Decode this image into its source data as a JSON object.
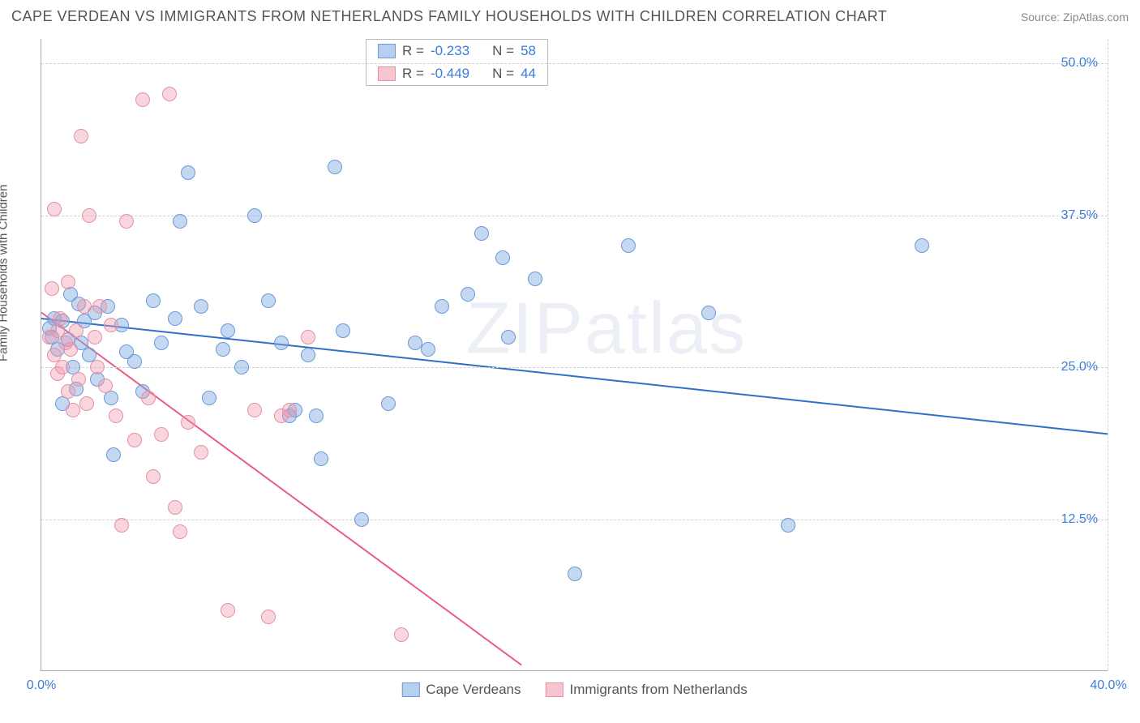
{
  "title": "CAPE VERDEAN VS IMMIGRANTS FROM NETHERLANDS FAMILY HOUSEHOLDS WITH CHILDREN CORRELATION CHART",
  "source": "Source: ZipAtlas.com",
  "watermark_text": "ZIPatlas",
  "chart": {
    "type": "scatter",
    "yaxis_title": "Family Households with Children",
    "yaxis_title_fontsize": 15,
    "background_color": "#ffffff",
    "grid_color": "#d0d0d0",
    "axis_color": "#aaaaaa",
    "tick_label_color": "#3b7dd8",
    "tick_fontsize": 16,
    "xlim": [
      0,
      40
    ],
    "ylim": [
      0,
      52
    ],
    "yticks": [
      12.5,
      25.0,
      37.5,
      50.0
    ],
    "ytick_labels": [
      "12.5%",
      "25.0%",
      "37.5%",
      "50.0%"
    ],
    "xticks": [
      0,
      40
    ],
    "xtick_labels": [
      "0.0%",
      "40.0%"
    ],
    "marker_size": 18,
    "series": [
      {
        "name": "Cape Verdeans",
        "color_fill": "rgba(126,169,226,0.45)",
        "color_border": "#6a9ad8",
        "color_hex": "#7ea9e2",
        "R": -0.233,
        "N": 58,
        "trend": {
          "x1": 0,
          "y1": 29.0,
          "x2": 40,
          "y2": 19.5,
          "stroke": "#2f6fc7",
          "width": 2
        },
        "points": [
          [
            0.3,
            28.2
          ],
          [
            0.4,
            27.5
          ],
          [
            0.5,
            29.0
          ],
          [
            0.6,
            26.5
          ],
          [
            0.8,
            28.8
          ],
          [
            0.8,
            22.0
          ],
          [
            1.0,
            27.3
          ],
          [
            1.1,
            31.0
          ],
          [
            1.2,
            25.0
          ],
          [
            1.3,
            23.2
          ],
          [
            1.4,
            30.2
          ],
          [
            1.5,
            27.0
          ],
          [
            1.6,
            28.8
          ],
          [
            1.8,
            26.0
          ],
          [
            2.0,
            29.5
          ],
          [
            2.1,
            24.0
          ],
          [
            2.5,
            30.0
          ],
          [
            2.6,
            22.5
          ],
          [
            2.7,
            17.8
          ],
          [
            3.0,
            28.5
          ],
          [
            3.2,
            26.3
          ],
          [
            3.5,
            25.5
          ],
          [
            3.8,
            23.0
          ],
          [
            4.2,
            30.5
          ],
          [
            4.5,
            27.0
          ],
          [
            5.0,
            29.0
          ],
          [
            5.2,
            37.0
          ],
          [
            5.5,
            41.0
          ],
          [
            6.0,
            30.0
          ],
          [
            6.3,
            22.5
          ],
          [
            6.8,
            26.5
          ],
          [
            7.0,
            28.0
          ],
          [
            7.5,
            25.0
          ],
          [
            8.0,
            37.5
          ],
          [
            8.5,
            30.5
          ],
          [
            9.0,
            27.0
          ],
          [
            9.3,
            21.0
          ],
          [
            9.5,
            21.5
          ],
          [
            10.0,
            26.0
          ],
          [
            10.3,
            21.0
          ],
          [
            10.5,
            17.5
          ],
          [
            11.0,
            41.5
          ],
          [
            11.3,
            28.0
          ],
          [
            12.0,
            12.5
          ],
          [
            13.0,
            22.0
          ],
          [
            14.0,
            27.0
          ],
          [
            14.5,
            26.5
          ],
          [
            15.0,
            30.0
          ],
          [
            16.0,
            31.0
          ],
          [
            16.5,
            36.0
          ],
          [
            17.3,
            34.0
          ],
          [
            17.5,
            27.5
          ],
          [
            18.5,
            32.3
          ],
          [
            20.0,
            8.0
          ],
          [
            22.0,
            35.0
          ],
          [
            25.0,
            29.5
          ],
          [
            28.0,
            12.0
          ],
          [
            33.0,
            35.0
          ]
        ]
      },
      {
        "name": "Immigrants from Netherlands",
        "color_fill": "rgba(240,150,170,0.40)",
        "color_border": "#e591a5",
        "color_hex": "#f096aa",
        "R": -0.449,
        "N": 44,
        "trend": {
          "x1": 0,
          "y1": 29.5,
          "x2": 18,
          "y2": 0.5,
          "stroke": "#e85d87",
          "width": 2
        },
        "points": [
          [
            0.3,
            27.5
          ],
          [
            0.4,
            31.5
          ],
          [
            0.5,
            26.0
          ],
          [
            0.5,
            38.0
          ],
          [
            0.6,
            28.0
          ],
          [
            0.6,
            24.5
          ],
          [
            0.7,
            29.0
          ],
          [
            0.8,
            25.0
          ],
          [
            0.9,
            27.0
          ],
          [
            1.0,
            23.0
          ],
          [
            1.0,
            32.0
          ],
          [
            1.1,
            26.5
          ],
          [
            1.2,
            21.5
          ],
          [
            1.3,
            28.0
          ],
          [
            1.4,
            24.0
          ],
          [
            1.5,
            44.0
          ],
          [
            1.6,
            30.0
          ],
          [
            1.7,
            22.0
          ],
          [
            1.8,
            37.5
          ],
          [
            2.0,
            27.5
          ],
          [
            2.1,
            25.0
          ],
          [
            2.2,
            30.0
          ],
          [
            2.4,
            23.5
          ],
          [
            2.6,
            28.5
          ],
          [
            2.8,
            21.0
          ],
          [
            3.0,
            12.0
          ],
          [
            3.2,
            37.0
          ],
          [
            3.5,
            19.0
          ],
          [
            3.8,
            47.0
          ],
          [
            4.0,
            22.5
          ],
          [
            4.2,
            16.0
          ],
          [
            4.5,
            19.5
          ],
          [
            4.8,
            47.5
          ],
          [
            5.0,
            13.5
          ],
          [
            5.2,
            11.5
          ],
          [
            5.5,
            20.5
          ],
          [
            6.0,
            18.0
          ],
          [
            7.0,
            5.0
          ],
          [
            8.0,
            21.5
          ],
          [
            8.5,
            4.5
          ],
          [
            9.0,
            21.0
          ],
          [
            9.3,
            21.5
          ],
          [
            10.0,
            27.5
          ],
          [
            13.5,
            3.0
          ]
        ]
      }
    ],
    "stats_legend": {
      "rows": [
        {
          "swatch": "blue",
          "R_label": "R =",
          "R": "-0.233",
          "N_label": "N =",
          "N": "58"
        },
        {
          "swatch": "pink",
          "R_label": "R =",
          "R": "-0.449",
          "N_label": "N =",
          "N": "44"
        }
      ]
    },
    "bottom_legend": {
      "items": [
        {
          "swatch": "blue",
          "label": "Cape Verdeans"
        },
        {
          "swatch": "pink",
          "label": "Immigrants from Netherlands"
        }
      ]
    }
  }
}
